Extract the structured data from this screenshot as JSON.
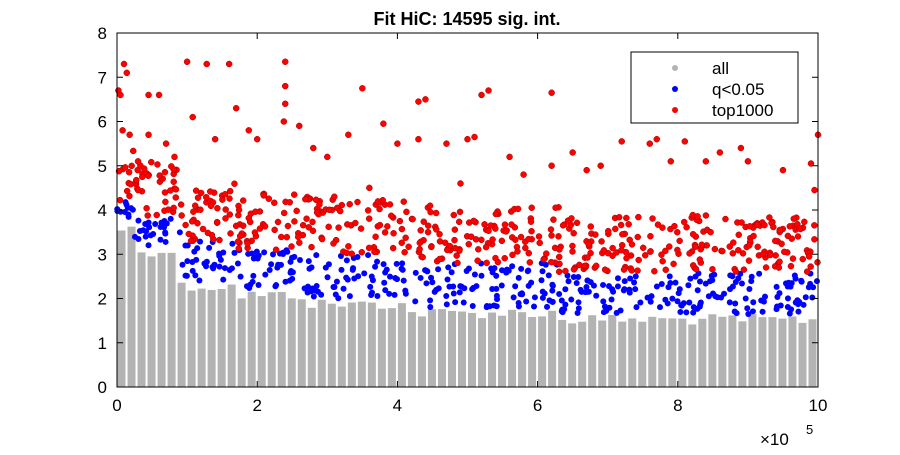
{
  "chart_data": {
    "type": "scatter",
    "title": "Fit HiC: 14595 sig. int.",
    "xlabel": "",
    "ylabel": "",
    "xlim": [
      0,
      1000000
    ],
    "ylim": [
      0,
      8
    ],
    "x_ticks": [
      0,
      200000,
      400000,
      600000,
      800000,
      1000000
    ],
    "x_tick_labels": [
      "0",
      "2",
      "4",
      "6",
      "8",
      "10"
    ],
    "x_exponent_label": {
      "base": "×10",
      "exp": "5"
    },
    "y_ticks": [
      0,
      1,
      2,
      3,
      4,
      5,
      6,
      7,
      8
    ],
    "y_tick_labels": [
      "0",
      "1",
      "2",
      "3",
      "4",
      "5",
      "6",
      "7",
      "8"
    ],
    "grid": false,
    "legend_position": "top-right",
    "series": [
      {
        "name": "all",
        "color": "#b3b3b3",
        "description_of_shape": "dense vertical bands from 0 up to the significance threshold across all x",
        "values": []
      },
      {
        "name": "q<0.05",
        "color": "#0000ff",
        "threshold_steps": [
          {
            "x_start": 0,
            "x_end": 25000,
            "y_low": 3.7,
            "y_high": 4.2
          },
          {
            "x_start": 25000,
            "x_end": 90000,
            "y_low": 3.2,
            "y_high": 3.8
          },
          {
            "x_start": 90000,
            "x_end": 170000,
            "y_low": 2.4,
            "y_high": 3.3
          },
          {
            "x_start": 170000,
            "x_end": 270000,
            "y_low": 2.2,
            "y_high": 3.1
          },
          {
            "x_start": 270000,
            "x_end": 410000,
            "y_low": 2.0,
            "y_high": 3.0
          },
          {
            "x_start": 410000,
            "x_end": 630000,
            "y_low": 1.8,
            "y_high": 2.8
          },
          {
            "x_start": 630000,
            "x_end": 1000000,
            "y_low": 1.65,
            "y_high": 2.6
          }
        ]
      },
      {
        "name": "top1000",
        "color": "#ff0000",
        "outliers": [
          [
            2000,
            6.7
          ],
          [
            5000,
            6.6
          ],
          [
            10000,
            7.3
          ],
          [
            14000,
            7.1
          ],
          [
            8000,
            5.8
          ],
          [
            18000,
            5.7
          ],
          [
            45000,
            6.6
          ],
          [
            60000,
            6.6
          ],
          [
            45000,
            5.7
          ],
          [
            30000,
            5.1
          ],
          [
            70000,
            5.5
          ],
          [
            82000,
            5.2
          ],
          [
            100000,
            7.35
          ],
          [
            108000,
            6.1
          ],
          [
            128000,
            7.3
          ],
          [
            140000,
            5.6
          ],
          [
            160000,
            7.3
          ],
          [
            170000,
            6.3
          ],
          [
            188000,
            5.8
          ],
          [
            200000,
            5.6
          ],
          [
            240000,
            7.35
          ],
          [
            240000,
            6.8
          ],
          [
            240000,
            6.4
          ],
          [
            238000,
            6.0
          ],
          [
            260000,
            5.9
          ],
          [
            280000,
            5.4
          ],
          [
            300000,
            5.2
          ],
          [
            330000,
            5.7
          ],
          [
            350000,
            6.75
          ],
          [
            380000,
            5.95
          ],
          [
            400000,
            5.5
          ],
          [
            430000,
            6.45
          ],
          [
            440000,
            6.5
          ],
          [
            430000,
            5.6
          ],
          [
            470000,
            5.5
          ],
          [
            500000,
            5.6
          ],
          [
            510000,
            5.65
          ],
          [
            520000,
            6.6
          ],
          [
            530000,
            6.7
          ],
          [
            560000,
            5.2
          ],
          [
            620000,
            6.65
          ],
          [
            620000,
            5.0
          ],
          [
            650000,
            5.3
          ],
          [
            690000,
            5.0
          ],
          [
            720000,
            5.55
          ],
          [
            770000,
            5.6
          ],
          [
            790000,
            5.1
          ],
          [
            810000,
            5.55
          ],
          [
            840000,
            5.1
          ],
          [
            860000,
            5.3
          ],
          [
            890000,
            5.4
          ],
          [
            900000,
            5.1
          ],
          [
            950000,
            4.9
          ],
          [
            990000,
            5.05
          ],
          [
            1000000,
            5.7
          ],
          [
            995000,
            4.45
          ],
          [
            760000,
            5.5
          ],
          [
            670000,
            4.9
          ],
          [
            580000,
            4.8
          ],
          [
            490000,
            4.6
          ],
          [
            360000,
            4.5
          ],
          [
            310000,
            4.3
          ]
        ]
      }
    ]
  }
}
